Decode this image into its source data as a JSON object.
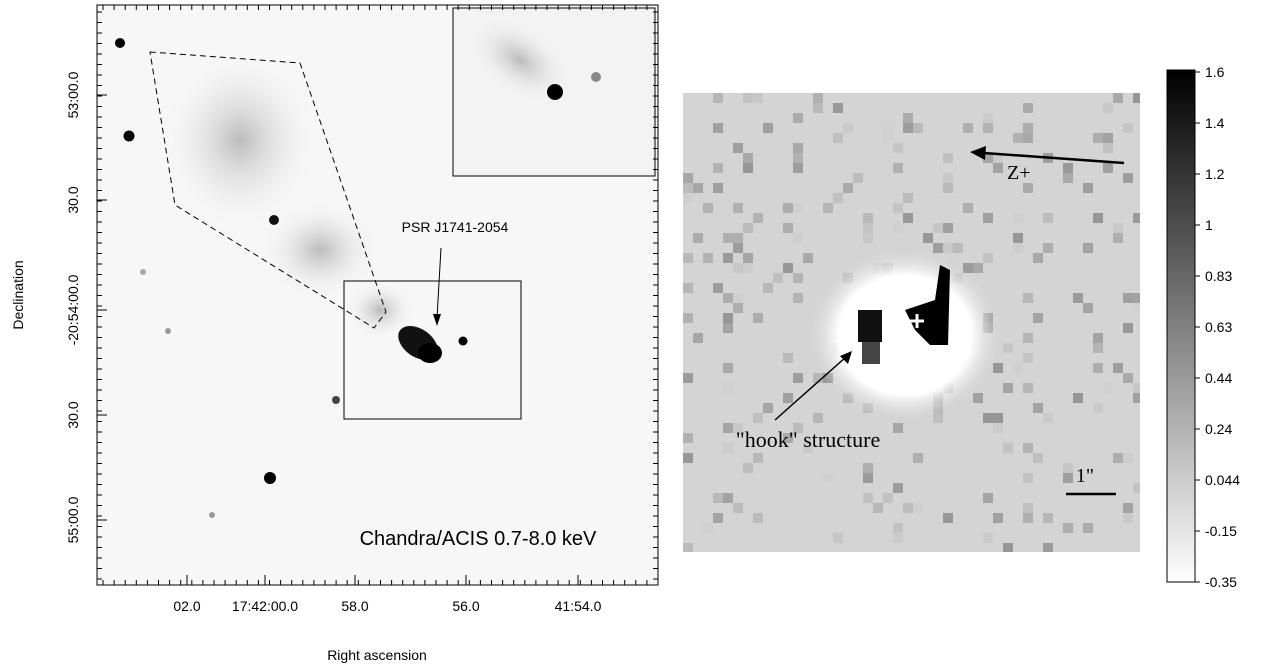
{
  "left_panel": {
    "x_label": "Right ascension",
    "y_label": "Declination",
    "x_ticks": [
      "02.0",
      "17:42:00.0",
      "58.0",
      "56.0",
      "41:54.0"
    ],
    "y_ticks": [
      "53:00.0",
      "30.0",
      "-20:54:00.0",
      "30.0",
      "55:00.0"
    ],
    "source_label": "PSR J1741-2054",
    "caption": "Chandra/ACIS 0.7-8.0 keV"
  },
  "right_panel": {
    "direction_label": "Z+",
    "feature_label": "\"hook\"  structure",
    "scale_label": "1\"",
    "colorbar_ticks": [
      1.6,
      1.4,
      1.2,
      1,
      0.83,
      0.63,
      0.44,
      0.24,
      0.044,
      -0.15,
      -0.35
    ]
  }
}
